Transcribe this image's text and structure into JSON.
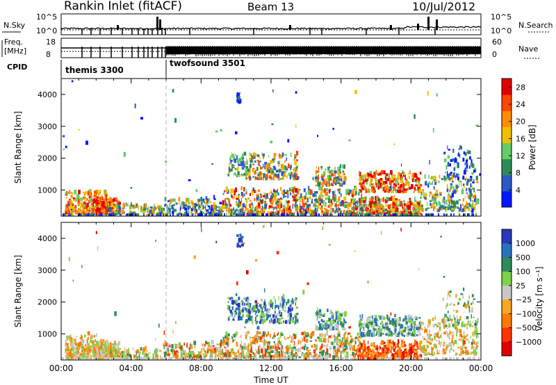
{
  "header": {
    "station": "Rankin Inlet (fitACF)",
    "beam": "Beam 13",
    "date": "10/Jul/2012"
  },
  "colors": {
    "power_scale": [
      "#0018ff",
      "#2d59c4",
      "#2e8b57",
      "#66cc66",
      "#f0c000",
      "#ff8c00",
      "#ff4500",
      "#e00000"
    ],
    "velocity_scale": [
      "#2838b8",
      "#2a70c0",
      "#2e8b57",
      "#7fd04a",
      "#c8c8c8",
      "#f5a623",
      "#ff7a00",
      "#ff3300",
      "#e00000"
    ]
  },
  "chart_data": [
    {
      "type": "line",
      "panel": "status",
      "left_label": "N.Sky",
      "left_ticks": [
        "10^5",
        "10^0"
      ],
      "right_label": "N.Search",
      "right_ticks": [
        "10^5",
        "10^0"
      ]
    },
    {
      "type": "line",
      "panel": "frequency",
      "left_label_lines": [
        "Freq.",
        "[MHz]"
      ],
      "left_ticks": [
        "18",
        "8"
      ],
      "right_label": "Nave",
      "right_ticks": [
        "60",
        "0"
      ]
    },
    {
      "type": "table",
      "panel": "cpid",
      "label": "CPID",
      "segments": [
        {
          "name": "themis 3300",
          "start": "00:00",
          "end": "06:00"
        },
        {
          "name": "twofsound 3501",
          "start": "06:00",
          "end": "24:00"
        }
      ]
    },
    {
      "type": "heatmap",
      "panel": "power",
      "ylabel": "Slant Range [km]",
      "yticks": [
        "1000",
        "2000",
        "3000",
        "4000"
      ],
      "ylim": [
        180,
        4500
      ],
      "xlim": [
        "00:00",
        "24:00"
      ],
      "colorbar_label": "Power [dB]",
      "colorbar_ticks": [
        "4",
        "8",
        "12",
        "16",
        "20",
        "24",
        "28"
      ],
      "colorbar_range": [
        0,
        30
      ]
    },
    {
      "type": "heatmap",
      "panel": "velocity",
      "ylabel": "Slant Range [km]",
      "yticks": [
        "1000",
        "2000",
        "3000",
        "4000"
      ],
      "ylim": [
        180,
        4500
      ],
      "xlabel": "Time UT",
      "xticks": [
        "00:00",
        "04:00",
        "08:00",
        "12:00",
        "16:00",
        "20:00",
        "00:00"
      ],
      "xlim": [
        "00:00",
        "24:00"
      ],
      "colorbar_label": "Velocity [m s⁻¹]",
      "colorbar_ticks": [
        "1000",
        "500",
        "100",
        "25",
        "−25",
        "−100",
        "−500",
        "−1000"
      ]
    }
  ]
}
